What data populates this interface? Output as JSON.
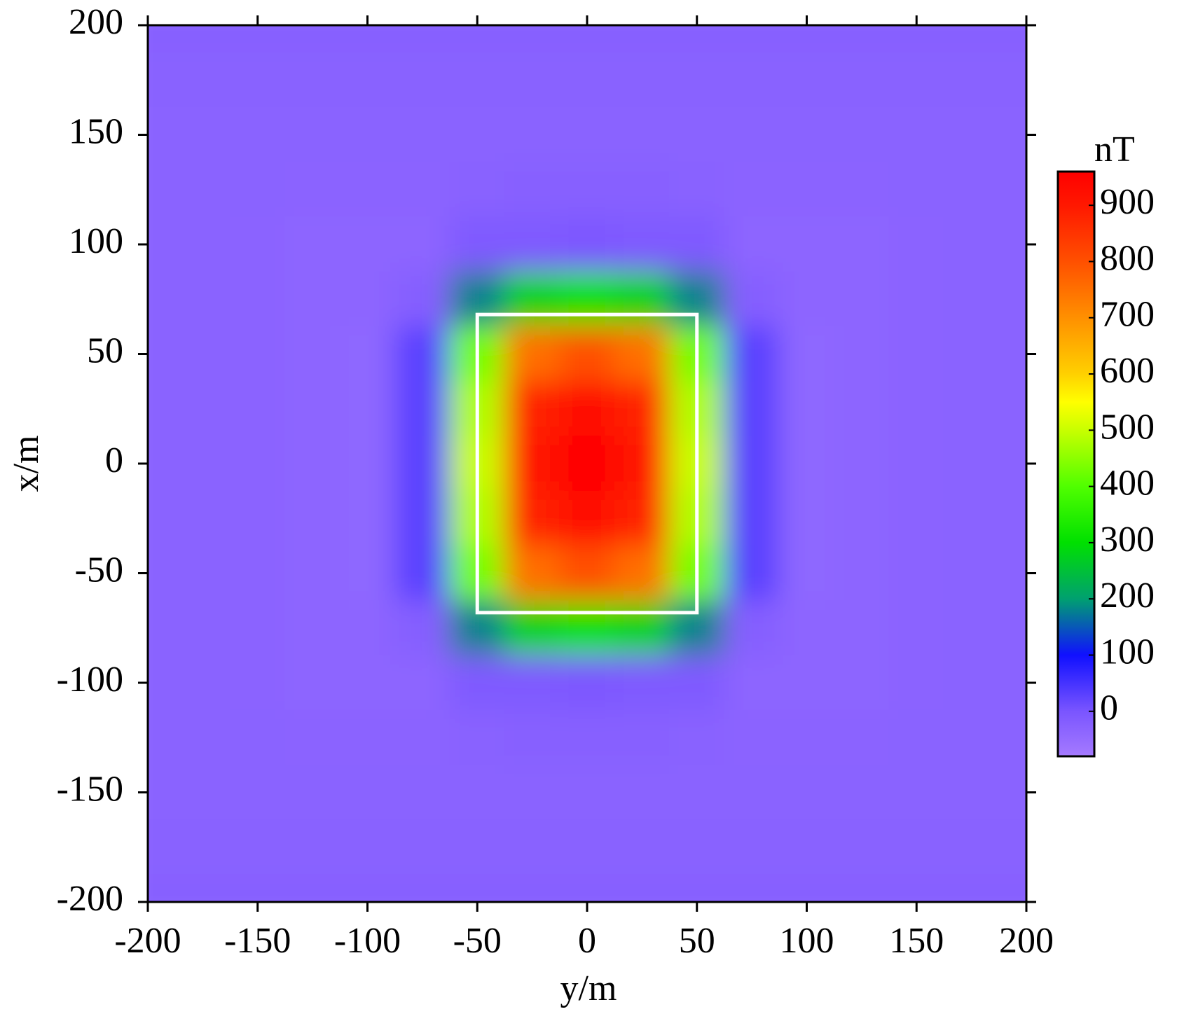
{
  "chart_data": {
    "type": "heatmap",
    "xlabel": "y/m",
    "ylabel": "x/m",
    "colorbar_title": "nT",
    "x": [
      -200,
      -175,
      -150,
      -125,
      -100,
      -75,
      -50,
      -25,
      0,
      25,
      50,
      75,
      100,
      125,
      150,
      175,
      200
    ],
    "y": [
      200,
      175,
      150,
      125,
      100,
      75,
      50,
      25,
      0,
      -25,
      -50,
      -75,
      -100,
      -125,
      -150,
      -175,
      -200
    ],
    "z": [
      [
        -25,
        -25,
        -25,
        -25,
        -25,
        -25,
        -25,
        -25,
        -25,
        -25,
        -25,
        -25,
        -25,
        -25,
        -25,
        -25,
        -25
      ],
      [
        -28,
        -28,
        -28,
        -28,
        -28,
        -28,
        -28,
        -28,
        -28,
        -28,
        -28,
        -28,
        -28,
        -28,
        -28,
        -28,
        -28
      ],
      [
        -30,
        -30,
        -30,
        -30,
        -30,
        -30,
        -30,
        -30,
        -30,
        -30,
        -30,
        -30,
        -30,
        -30,
        -30,
        -30,
        -30
      ],
      [
        -30,
        -30,
        -30,
        -32,
        -32,
        -32,
        -28,
        -25,
        -25,
        -25,
        -28,
        -32,
        -32,
        -32,
        -30,
        -30,
        -30
      ],
      [
        -30,
        -30,
        -32,
        -35,
        -35,
        -35,
        -10,
        -10,
        -5,
        -10,
        -10,
        -35,
        -35,
        -35,
        -32,
        -30,
        -30
      ],
      [
        -30,
        -30,
        -32,
        -35,
        -35,
        -20,
        180,
        280,
        300,
        280,
        180,
        -20,
        -35,
        -35,
        -32,
        -30,
        -30
      ],
      [
        -30,
        -30,
        -32,
        -35,
        -38,
        30,
        430,
        750,
        800,
        750,
        430,
        30,
        -38,
        -35,
        -32,
        -30,
        -30
      ],
      [
        -30,
        -30,
        -32,
        -35,
        -38,
        30,
        480,
        880,
        940,
        880,
        480,
        30,
        -38,
        -35,
        -32,
        -30,
        -30
      ],
      [
        -30,
        -30,
        -32,
        -35,
        -38,
        30,
        500,
        900,
        960,
        900,
        500,
        30,
        -38,
        -35,
        -32,
        -30,
        -30
      ],
      [
        -30,
        -30,
        -32,
        -35,
        -38,
        30,
        480,
        880,
        940,
        880,
        480,
        30,
        -38,
        -35,
        -32,
        -30,
        -30
      ],
      [
        -30,
        -30,
        -32,
        -35,
        -38,
        30,
        430,
        750,
        800,
        750,
        430,
        30,
        -38,
        -35,
        -32,
        -30,
        -30
      ],
      [
        -30,
        -30,
        -32,
        -35,
        -35,
        -20,
        180,
        280,
        300,
        280,
        180,
        -20,
        -35,
        -35,
        -32,
        -30,
        -30
      ],
      [
        -30,
        -30,
        -32,
        -35,
        -35,
        -35,
        -10,
        -10,
        -5,
        -10,
        -10,
        -35,
        -35,
        -35,
        -32,
        -30,
        -30
      ],
      [
        -30,
        -30,
        -30,
        -32,
        -32,
        -32,
        -28,
        -25,
        -25,
        -25,
        -28,
        -32,
        -32,
        -32,
        -30,
        -30,
        -30
      ],
      [
        -30,
        -30,
        -30,
        -30,
        -30,
        -30,
        -30,
        -30,
        -30,
        -30,
        -30,
        -30,
        -30,
        -30,
        -30,
        -30,
        -30
      ],
      [
        -28,
        -28,
        -28,
        -28,
        -28,
        -28,
        -28,
        -28,
        -28,
        -28,
        -28,
        -28,
        -28,
        -28,
        -28,
        -28,
        -28
      ],
      [
        -25,
        -25,
        -25,
        -25,
        -25,
        -25,
        -25,
        -25,
        -25,
        -25,
        -25,
        -25,
        -25,
        -25,
        -25,
        -25,
        -25
      ]
    ],
    "xlim": [
      -200,
      200
    ],
    "ylim": [
      -200,
      200
    ],
    "xticks": [
      -200,
      -150,
      -100,
      -50,
      0,
      50,
      100,
      150,
      200
    ],
    "yticks": [
      -200,
      -150,
      -100,
      -50,
      0,
      50,
      100,
      150,
      200
    ],
    "clim": [
      -80,
      960
    ],
    "cticks": [
      0,
      100,
      200,
      300,
      400,
      500,
      600,
      700,
      800,
      900
    ],
    "colorscale": [
      [
        -80,
        "#a57aff"
      ],
      [
        0,
        "#7a55ff"
      ],
      [
        100,
        "#1010ff"
      ],
      [
        200,
        "#00a070"
      ],
      [
        300,
        "#00e000"
      ],
      [
        400,
        "#50ff00"
      ],
      [
        500,
        "#c8ff00"
      ],
      [
        550,
        "#ffff00"
      ],
      [
        600,
        "#ffd000"
      ],
      [
        700,
        "#ff9000"
      ],
      [
        800,
        "#ff5000"
      ],
      [
        900,
        "#ff1800"
      ],
      [
        960,
        "#ff0000"
      ]
    ],
    "outline": {
      "x": [
        -50,
        50
      ],
      "y": [
        -68,
        68
      ],
      "color": "#ffffff"
    }
  }
}
